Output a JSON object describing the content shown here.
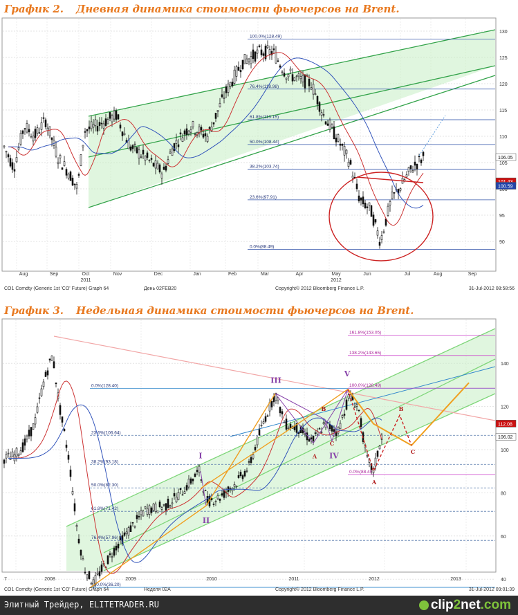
{
  "charts": [
    {
      "title_label": "График 2.",
      "title_text": "Дневная динамика стоимости фьючерсов на Brent.",
      "footer_left": "CO1 Comdty (Generic 1st 'CO' Future) Graph 64",
      "footer_mid": "День 02FEB20",
      "footer_copy": "Copyright© 2012 Bloomberg Finance L.P.",
      "footer_right": "31-Jul-2012 08:58:56",
      "x_labels": [
        "Aug",
        "Sep",
        "Oct",
        "Nov",
        "Dec",
        "Jan",
        "Feb",
        "Mar",
        "Apr",
        "May",
        "Jun",
        "Jul",
        "Aug",
        "Sep"
      ],
      "year_labels": [
        "2011",
        "2012"
      ],
      "y_ticks": [
        "130",
        "125",
        "120",
        "115",
        "110",
        "105",
        "100",
        "95",
        "90"
      ],
      "fib_labels": [
        "100.0%(128.49)",
        "76.4%(118.98)",
        "61.8%(113.15)",
        "50.0%(108.44)",
        "38.2%(103.74)",
        "23.6%(97.91)",
        "0.0%(88.49)"
      ],
      "price_tags": [
        "106.05",
        "101.43",
        "100.59"
      ]
    },
    {
      "title_label": "График 3.",
      "title_text": "Недельная динамика стоимости фьючерсов на Brent.",
      "footer_left": "CO1 Comdty (Generic 1st 'CO' Future) Graph 64",
      "footer_mid": "Неделя 02A",
      "footer_copy": "Copyright© 2012 Bloomberg Finance L.P.",
      "footer_right": "31-Jul-2012 09:01:39",
      "x_labels": [
        "7",
        "2008",
        "2009",
        "2010",
        "2011",
        "2012",
        "2013"
      ],
      "y_ticks": [
        "140",
        "120",
        "100",
        "80",
        "60",
        "40"
      ],
      "fib_labels": [
        "0.0%(128.40)",
        "23.6%(106.64)",
        "38.2%(93.18)",
        "50.0%(82.30)",
        "61.8%(71.42)",
        "76.4%(57.96)",
        "100.0%(36.20)",
        "100.0%(128.49)",
        "0.0%(88.49)",
        "138.2%(143.65)",
        "161.8%(153.05)"
      ],
      "wave_labels": [
        "I",
        "II",
        "III",
        "IV",
        "V",
        "A",
        "B",
        "C",
        "B",
        "C",
        "A"
      ],
      "price_tags": [
        "112.08",
        "106.02"
      ]
    }
  ],
  "chart_data": [
    {
      "type": "line",
      "title": "График 2. Дневная динамика стоимости фьючерсов на Brent.",
      "x": [
        "Aug",
        "Sep",
        "Oct",
        "Nov",
        "Dec",
        "Jan",
        "Feb",
        "Mar",
        "Apr",
        "May",
        "Jun",
        "Jul"
      ],
      "series": [
        {
          "values": [
            108,
            112,
            104,
            112,
            104,
            109,
            121,
            126,
            121,
            112,
            98,
            104
          ]
        },
        {
          "values": [
            109,
            110,
            107,
            109,
            106,
            107,
            117,
            124,
            122,
            113,
            101,
            100
          ]
        },
        {
          "values": [
            108,
            108,
            109,
            109,
            107,
            107,
            112,
            118,
            122,
            118,
            109,
            102
          ]
        }
      ],
      "ylim": [
        86,
        131
      ],
      "grid": true,
      "legend": "none"
    },
    {
      "type": "line",
      "title": "График 3. Недельная динамика стоимости фьючерсов на Brent.",
      "x": [
        "2008",
        "2009",
        "2010",
        "2011",
        "2012"
      ],
      "series": [
        {
          "values": [
            95,
            45,
            76,
            95,
            112
          ]
        },
        {
          "values": [
            96,
            60,
            72,
            90,
            108
          ]
        },
        {
          "values": [
            90,
            75,
            70,
            88,
            102
          ]
        }
      ],
      "ylim": [
        36,
        155
      ],
      "grid": true,
      "legend": "none"
    }
  ],
  "site": {
    "footer_text": "Элитный Трейдер, ELITETRADER.RU",
    "logo_a": "clip",
    "logo_b": "2",
    "logo_c": "net",
    "logo_d": ".com"
  }
}
